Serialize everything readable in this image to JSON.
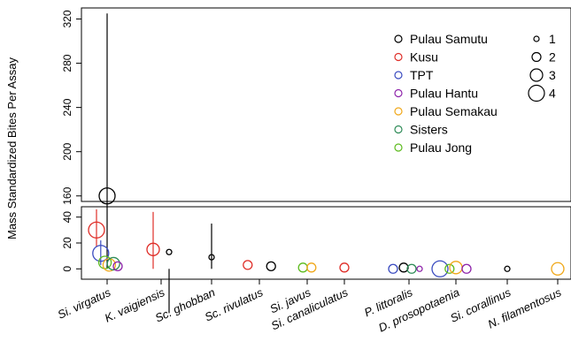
{
  "chart_data": {
    "type": "scatter",
    "ylabel": "Mass Standardized Bites Per Assay",
    "axis_break": true,
    "upper_panel": {
      "ylim": [
        155,
        330
      ],
      "yticks": [
        160,
        200,
        240,
        280,
        320
      ]
    },
    "lower_panel": {
      "ylim": [
        -8,
        48
      ],
      "yticks": [
        0,
        20,
        40
      ]
    },
    "categories": [
      "Si. virgatus",
      "K. vaigiensis",
      "Sc. ghobban",
      "Sc. rivulatus",
      "Si. javus",
      "Si. canaliculatus",
      "P. littoralis",
      "D. prosopotaenia",
      "Si. corallinus",
      "N. filamentosus"
    ],
    "series": [
      {
        "name": "Pulau Samutu",
        "color": "#000000"
      },
      {
        "name": "Kusu",
        "color": "#DF2E28"
      },
      {
        "name": "TPT",
        "color": "#3B4CC0"
      },
      {
        "name": "Pulau Hantu",
        "color": "#8E24AA"
      },
      {
        "name": "Pulau Semakau",
        "color": "#F0A81A"
      },
      {
        "name": "Sisters",
        "color": "#2E8B57"
      },
      {
        "name": "Pulau Jong",
        "color": "#5DBB1E"
      }
    ],
    "size_legend": [
      {
        "label": "1",
        "size": 1
      },
      {
        "label": "2",
        "size": 2
      },
      {
        "label": "3",
        "size": 3
      },
      {
        "label": "4",
        "size": 4
      }
    ],
    "points": [
      {
        "category": 0,
        "offset": 0.0,
        "series": 0,
        "value": 160,
        "size": 4,
        "low": 0,
        "high": 325
      },
      {
        "category": 0,
        "offset": -0.2,
        "series": 1,
        "value": 30,
        "size": 4,
        "low": 17,
        "high": 46
      },
      {
        "category": 0,
        "offset": -0.12,
        "series": 2,
        "value": 12,
        "size": 4,
        "low": 3,
        "high": 22
      },
      {
        "category": 0,
        "offset": -0.04,
        "series": 6,
        "value": 5,
        "size": 3
      },
      {
        "category": 0,
        "offset": 0.04,
        "series": 4,
        "value": 3,
        "size": 3
      },
      {
        "category": 0,
        "offset": 0.12,
        "series": 5,
        "value": 4,
        "size": 3
      },
      {
        "category": 0,
        "offset": 0.2,
        "series": 3,
        "value": 2,
        "size": 2
      },
      {
        "category": 1,
        "offset": -0.15,
        "series": 1,
        "value": 15,
        "size": 3,
        "low": 0,
        "high": 44
      },
      {
        "category": 1,
        "offset": 0.15,
        "series": 0,
        "value": 13,
        "size": 1,
        "low": 0,
        "high": 54
      },
      {
        "category": 2,
        "offset": 0.0,
        "series": 0,
        "value": 9,
        "size": 1,
        "low": 0,
        "high": 35
      },
      {
        "category": 3,
        "offset": -0.22,
        "series": 1,
        "value": 3,
        "size": 2
      },
      {
        "category": 3,
        "offset": 0.22,
        "series": 0,
        "value": 2,
        "size": 2
      },
      {
        "category": 4,
        "offset": -0.08,
        "series": 6,
        "value": 1,
        "size": 2
      },
      {
        "category": 4,
        "offset": 0.08,
        "series": 4,
        "value": 1,
        "size": 2
      },
      {
        "category": 5,
        "offset": 0.0,
        "series": 1,
        "value": 1,
        "size": 2
      },
      {
        "category": 6,
        "offset": -0.3,
        "series": 2,
        "value": 0,
        "size": 2
      },
      {
        "category": 6,
        "offset": -0.1,
        "series": 0,
        "value": 1,
        "size": 2
      },
      {
        "category": 6,
        "offset": 0.05,
        "series": 5,
        "value": 0,
        "size": 2
      },
      {
        "category": 6,
        "offset": 0.2,
        "series": 3,
        "value": 0,
        "size": 1
      },
      {
        "category": 7,
        "offset": -0.3,
        "series": 2,
        "value": 0,
        "size": 4
      },
      {
        "category": 7,
        "offset": -0.12,
        "series": 6,
        "value": 0,
        "size": 2
      },
      {
        "category": 7,
        "offset": 0.0,
        "series": 4,
        "value": 1,
        "size": 3
      },
      {
        "category": 7,
        "offset": 0.2,
        "series": 3,
        "value": 0,
        "size": 2
      },
      {
        "category": 8,
        "offset": 0.0,
        "series": 0,
        "value": 0,
        "size": 1
      },
      {
        "category": 9,
        "offset": 0.0,
        "series": 4,
        "value": 0,
        "size": 3
      }
    ]
  }
}
